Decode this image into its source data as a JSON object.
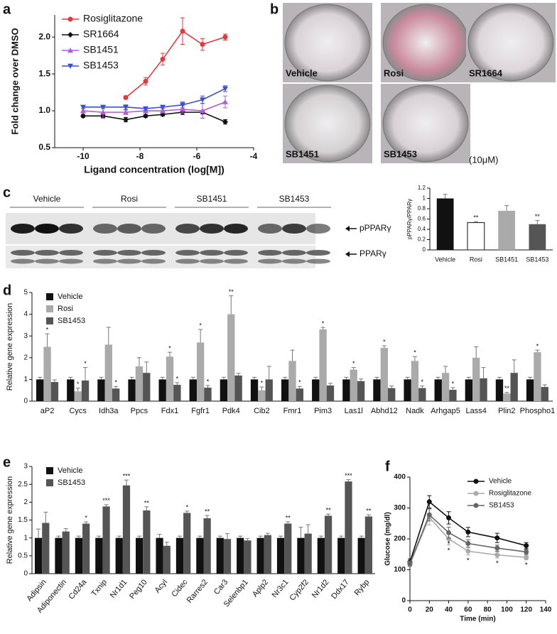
{
  "panel_labels": [
    "a",
    "b",
    "c",
    "d",
    "e",
    "f"
  ],
  "panel_b": {
    "wells": [
      "Vehicle",
      "Rosi",
      "SR1664",
      "SB1451",
      "SB1453"
    ],
    "note": "(10μM)"
  },
  "panel_c_blot": {
    "groups": [
      "Vehicle",
      "Rosi",
      "SB1451",
      "SB1453"
    ],
    "bands": [
      "pPPARγ",
      "PPARγ"
    ]
  },
  "chart_data": [
    {
      "type": "line",
      "y_label": "Fold change over DMSO",
      "x_label": "Ligand concentration (log[M])",
      "xlim": [
        -11,
        -4
      ],
      "xticks": [
        -10,
        -8,
        -6,
        -4
      ],
      "ylim": [
        0.5,
        2.3
      ],
      "yticks": [
        0.5,
        {
          "value": 1,
          "label": "1.0"
        },
        1.5,
        {
          "value": 2,
          "label": "2.0"
        }
      ],
      "legend": "upper left",
      "series": [
        {
          "name": "Rosiglitazone",
          "color": "#e0393e",
          "marker": "circle",
          "x": [
            -8.5,
            -7.8,
            -7.2,
            -6.5,
            -5.8,
            -5
          ],
          "values": [
            1.18,
            1.4,
            1.7,
            2.08,
            1.9,
            2.0
          ],
          "errors": [
            0.02,
            0.05,
            0.08,
            0.18,
            0.08,
            0.04
          ]
        },
        {
          "name": "SR1664",
          "color": "#111111",
          "marker": "diamond",
          "x": [
            -10,
            -9.3,
            -8.5,
            -7.8,
            -7.2,
            -6.5,
            -5.8,
            -5
          ],
          "values": [
            0.93,
            0.93,
            0.88,
            0.93,
            0.95,
            0.98,
            0.98,
            0.85
          ],
          "errors": [
            0.02,
            0.02,
            0.03,
            0.02,
            0.02,
            0.03,
            0.02,
            0.03
          ]
        },
        {
          "name": "SB1451",
          "color": "#b05cd6",
          "marker": "triangle-up",
          "x": [
            -10,
            -9.3,
            -8.5,
            -7.8,
            -7.2,
            -6.5,
            -5.8,
            -5
          ],
          "values": [
            1.0,
            0.98,
            0.98,
            1.0,
            1.0,
            1.02,
            1.0,
            1.12
          ],
          "errors": [
            0.03,
            0.08,
            0.03,
            0.03,
            0.03,
            0.05,
            0.1,
            0.08
          ]
        },
        {
          "name": "SB1453",
          "color": "#3b4fd6",
          "marker": "triangle-down",
          "x": [
            -10,
            -9.3,
            -8.5,
            -7.8,
            -7.2,
            -6.5,
            -5.8,
            -5
          ],
          "values": [
            1.05,
            1.05,
            1.05,
            1.03,
            1.05,
            1.08,
            1.15,
            1.3
          ],
          "errors": [
            0.02,
            0.02,
            0.03,
            0.02,
            0.02,
            0.04,
            0.05,
            0.04
          ]
        }
      ]
    },
    {
      "type": "bar",
      "y_label": "pPPARγ/PPARγ",
      "categories": [
        "Vehicle",
        "Rosi",
        "SB1451",
        "SB1453"
      ],
      "values": [
        1,
        0.53,
        0.76,
        0.5
      ],
      "errors": [
        0.08,
        0.02,
        0.1,
        0.07
      ],
      "significance": [
        null,
        "**",
        null,
        "**"
      ],
      "colors": [
        "#111111",
        "#ffffff",
        "#aaaaaa",
        "#555555"
      ],
      "ylim": [
        0,
        1.2
      ],
      "yticks": [
        0,
        0.2,
        0.4,
        0.6,
        0.8,
        1,
        1.2
      ]
    },
    {
      "type": "bar",
      "y_label": "Relative gene expression",
      "legend": "upper left",
      "categories": [
        "aP2",
        "Cycs",
        "Idh3a",
        "Ppcs",
        "Fdx1",
        "Fgfr1",
        "Pdk4",
        "Cib2",
        "Fmr1",
        "Pim3",
        "Las1l",
        "Abhd12",
        "Nadk",
        "Arhgap5",
        "Lass4",
        "Plin2",
        "Phospho1"
      ],
      "ylim": [
        0,
        5
      ],
      "yticks": [
        0,
        1,
        2,
        3,
        4,
        5
      ],
      "series": [
        {
          "name": "Vehicle",
          "color": "#111111",
          "values": [
            1,
            1,
            1,
            1,
            1,
            1,
            1,
            1,
            1,
            1,
            1,
            1,
            1,
            1,
            1,
            1,
            1
          ],
          "errors": [
            0.1,
            0.1,
            0.1,
            0.1,
            0.1,
            0.1,
            0.1,
            0.1,
            0.1,
            0.1,
            0.1,
            0.1,
            0.1,
            0.1,
            0.1,
            0.1,
            0.1
          ]
        },
        {
          "name": "Rosi",
          "color": "#aaaaaa",
          "values": [
            2.5,
            0.45,
            2.6,
            1.6,
            2.05,
            2.7,
            4.0,
            0.5,
            1.85,
            3.3,
            1.45,
            2.45,
            1.85,
            1.3,
            2.0,
            0.35,
            2.25
          ],
          "errors": [
            0.6,
            0.15,
            0.8,
            0.4,
            0.2,
            0.6,
            0.85,
            0.15,
            0.5,
            0.1,
            0.1,
            0.1,
            0.2,
            0.3,
            0.5,
            0.05,
            0.1
          ],
          "significance": [
            "*",
            "*",
            null,
            null,
            "*",
            "*",
            "**",
            "*",
            null,
            "*",
            "*",
            "*",
            "*",
            null,
            null,
            "**",
            "*"
          ]
        },
        {
          "name": "SB1453",
          "color": "#555555",
          "values": [
            0.88,
            0.95,
            0.58,
            1.3,
            0.75,
            0.62,
            1.18,
            1.0,
            0.58,
            0.72,
            0.92,
            0.6,
            0.6,
            0.52,
            1.05,
            1.3,
            0.65
          ],
          "errors": [
            0.1,
            0.6,
            0.1,
            0.5,
            0.1,
            0.1,
            0.1,
            0.6,
            0.1,
            0.1,
            0.1,
            0.1,
            0.1,
            0.1,
            0.5,
            0.6,
            0.1
          ],
          "significance": [
            null,
            "*",
            "*",
            null,
            "*",
            "*",
            null,
            null,
            "*",
            null,
            null,
            null,
            "*",
            "*",
            null,
            null,
            null
          ]
        }
      ]
    },
    {
      "type": "bar",
      "y_label": "Relative gene expression",
      "legend": "upper left",
      "rotate_labels": true,
      "categories": [
        "Adipsin",
        "Adiponectin",
        "Cd24a",
        "Txnip",
        "Nr1d1",
        "Peg10",
        "Acyl",
        "Cidec",
        "Rarres2",
        "Car3",
        "Selenbp1",
        "Aplp2",
        "Nr3c1",
        "Cyp2f2",
        "Nr1d2",
        "Ddx17",
        "Rybp"
      ],
      "ylim": [
        0,
        3
      ],
      "yticks": [
        0,
        0.5,
        1,
        1.5,
        2,
        2.5,
        3
      ],
      "series": [
        {
          "name": "Vehicle",
          "color": "#111111",
          "values": [
            1,
            1,
            1,
            1,
            1,
            1,
            1,
            1,
            1,
            1,
            1,
            1,
            1,
            1,
            1,
            1,
            1
          ],
          "errors": [
            0.25,
            0.05,
            0.05,
            0.05,
            0.05,
            0.05,
            0.1,
            0.05,
            0.05,
            0.05,
            0.05,
            0.05,
            0.05,
            0.3,
            0.05,
            0.05,
            0.05
          ]
        },
        {
          "name": "SB1453",
          "color": "#555555",
          "values": [
            1.42,
            1.18,
            1.4,
            1.88,
            2.47,
            1.77,
            0.78,
            1.7,
            1.55,
            0.97,
            0.93,
            1.08,
            1.4,
            1.12,
            1.62,
            2.58,
            1.6
          ],
          "errors": [
            0.3,
            0.08,
            0.05,
            0.05,
            0.15,
            0.1,
            0.1,
            0.05,
            0.08,
            0.15,
            0.05,
            0.05,
            0.05,
            0.25,
            0.05,
            0.05,
            0.05
          ],
          "significance": [
            null,
            null,
            "*",
            "***",
            "***",
            "**",
            null,
            "*",
            "**",
            null,
            null,
            null,
            "**",
            null,
            "**",
            "***",
            "**"
          ]
        }
      ]
    },
    {
      "type": "line",
      "y_label": "Glucose (mg/dl)",
      "x_label": "Time (min)",
      "xlim": [
        0,
        140
      ],
      "xticks": [
        0,
        20,
        40,
        60,
        80,
        100,
        120,
        140
      ],
      "ylim": [
        0,
        400
      ],
      "yticks": [
        0,
        100,
        200,
        300,
        400
      ],
      "legend": "upper right",
      "series": [
        {
          "name": "Vehicle",
          "color": "#111111",
          "marker": "circle",
          "x": [
            0,
            20,
            40,
            60,
            90,
            120
          ],
          "values": [
            125,
            320,
            268,
            222,
            203,
            178
          ],
          "errors": [
            10,
            20,
            20,
            15,
            15,
            10
          ]
        },
        {
          "name": "Rosiglitazone",
          "color": "#aaaaaa",
          "marker": "circle",
          "x": [
            0,
            20,
            40,
            60,
            90,
            120
          ],
          "values": [
            118,
            270,
            200,
            160,
            148,
            140
          ],
          "errors": [
            8,
            25,
            20,
            12,
            10,
            8
          ],
          "significance": [
            null,
            null,
            "*",
            "*",
            "*",
            "*"
          ]
        },
        {
          "name": "SB1453",
          "color": "#666666",
          "marker": "circle",
          "x": [
            0,
            20,
            40,
            60,
            90,
            120
          ],
          "values": [
            120,
            278,
            220,
            185,
            170,
            158
          ],
          "errors": [
            8,
            20,
            18,
            12,
            10,
            8
          ],
          "significance": [
            null,
            null,
            "*",
            null,
            null,
            null
          ]
        }
      ]
    }
  ]
}
